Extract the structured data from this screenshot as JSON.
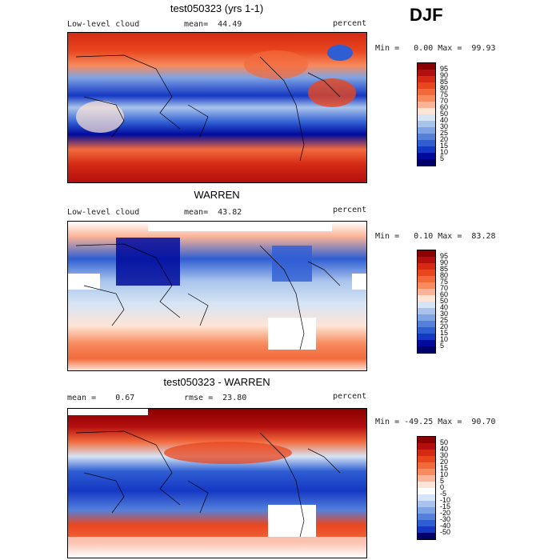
{
  "season": "DJF",
  "panels": [
    {
      "title": "test050323 (yrs 1-1)",
      "left_label": "Low-level cloud",
      "mid_label": "mean=  44.49",
      "units": "percent",
      "minmax": "Min =   0.00 Max =  99.93",
      "colorbar": {
        "labels": [
          "95",
          "90",
          "85",
          "80",
          "75",
          "70",
          "60",
          "50",
          "40",
          "30",
          "25",
          "20",
          "15",
          "10",
          "5"
        ],
        "colors": [
          "#8b0000",
          "#b40f0f",
          "#d42a14",
          "#e8461e",
          "#f26a3c",
          "#f78b5e",
          "#fbb497",
          "#fde4d6",
          "#d6e4f5",
          "#a9c4ec",
          "#7fa3e4",
          "#5480dc",
          "#2f5ed3",
          "#1538c4",
          "#000a9c",
          "#00006b"
        ]
      }
    },
    {
      "title": "WARREN",
      "left_label": "Low-level cloud",
      "mid_label": "mean=  43.82",
      "units": "percent",
      "minmax": "Min =   0.10 Max =  83.28",
      "colorbar": {
        "labels": [
          "95",
          "90",
          "85",
          "80",
          "75",
          "70",
          "60",
          "50",
          "40",
          "30",
          "25",
          "20",
          "15",
          "10",
          "5"
        ],
        "colors": [
          "#8b0000",
          "#b40f0f",
          "#d42a14",
          "#e8461e",
          "#f26a3c",
          "#f78b5e",
          "#fbb497",
          "#fde4d6",
          "#d6e4f5",
          "#a9c4ec",
          "#7fa3e4",
          "#5480dc",
          "#2f5ed3",
          "#1538c4",
          "#000a9c",
          "#00006b"
        ]
      }
    },
    {
      "title": "test050323 - WARREN",
      "left_label": "mean =    0.67",
      "mid_label": "rmse =  23.80",
      "units": "percent",
      "minmax": "Min = -49.25 Max =  90.70",
      "colorbar": {
        "labels": [
          "50",
          "40",
          "30",
          "20",
          "15",
          "10",
          "5",
          "0",
          "-5",
          "-10",
          "-15",
          "-20",
          "-30",
          "-40",
          "-50"
        ],
        "colors": [
          "#8b0000",
          "#b40f0f",
          "#d42a14",
          "#e8461e",
          "#f26a3c",
          "#f78b5e",
          "#fbb497",
          "#fde4d6",
          "#ffffff",
          "#d6e4f5",
          "#a9c4ec",
          "#7fa3e4",
          "#5480dc",
          "#2f5ed3",
          "#1538c4",
          "#00006b"
        ]
      }
    }
  ]
}
